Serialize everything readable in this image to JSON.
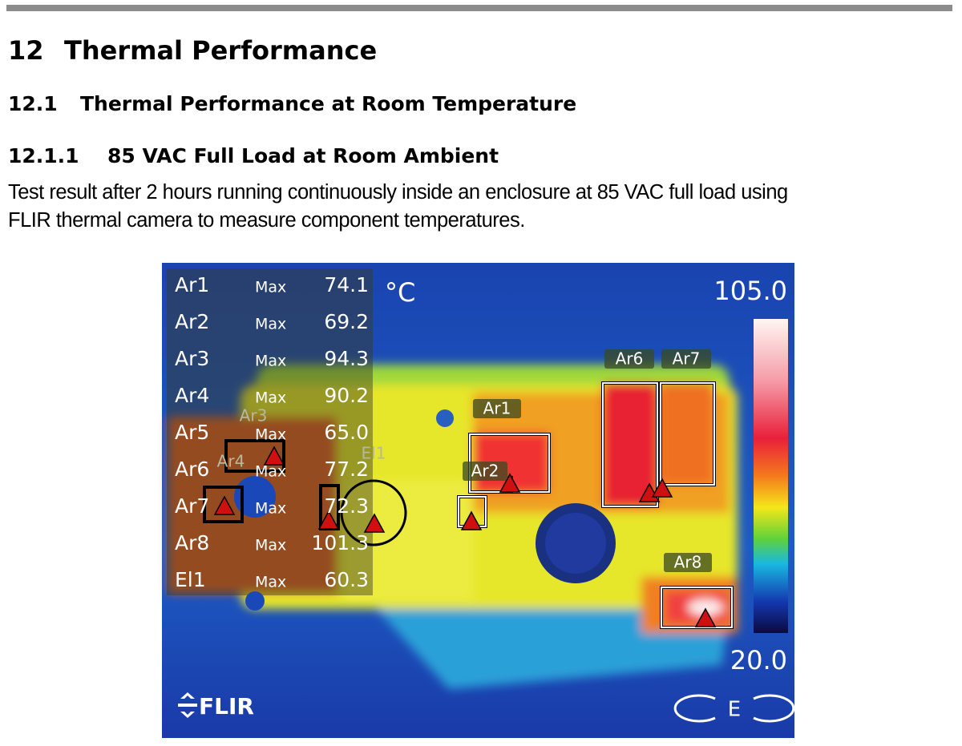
{
  "heading1": {
    "number": "12",
    "title": "Thermal Performance"
  },
  "heading2": {
    "number": "12.1",
    "title": "Thermal Performance at Room Temperature"
  },
  "heading3": {
    "number": "12.1.1",
    "title": "85 VAC Full Load at Room Ambient"
  },
  "paragraph": [
    "Test result after 2 hours running continuously inside an enclosure at 85 VAC full load using",
    "FLIR thermal camera to measure component temperatures."
  ],
  "thermal_image": {
    "unit": "°C",
    "measurements": [
      {
        "name": "Ar1",
        "stat": "Max",
        "value": "74.1"
      },
      {
        "name": "Ar2",
        "stat": "Max",
        "value": "69.2"
      },
      {
        "name": "Ar3",
        "stat": "Max",
        "value": "94.3"
      },
      {
        "name": "Ar4",
        "stat": "Max",
        "value": "90.2"
      },
      {
        "name": "Ar5",
        "stat": "Max",
        "value": "65.0"
      },
      {
        "name": "Ar6",
        "stat": "Max",
        "value": "77.2"
      },
      {
        "name": "Ar7",
        "stat": "Max",
        "value": "72.3"
      },
      {
        "name": "Ar8",
        "stat": "Max",
        "value": "101.3"
      },
      {
        "name": "El1",
        "stat": "Max",
        "value": "60.3"
      }
    ],
    "scale": {
      "max": "105.0",
      "min": "20.0"
    },
    "area_labels": {
      "ar1": "Ar1",
      "ar2": "Ar2",
      "ar3": "Ar3",
      "ar4": "Ar4",
      "ar6": "Ar6",
      "ar7": "Ar7",
      "ar8": "Ar8",
      "el1": "El1"
    },
    "logo": "FLIR",
    "mode_icon": "E"
  }
}
